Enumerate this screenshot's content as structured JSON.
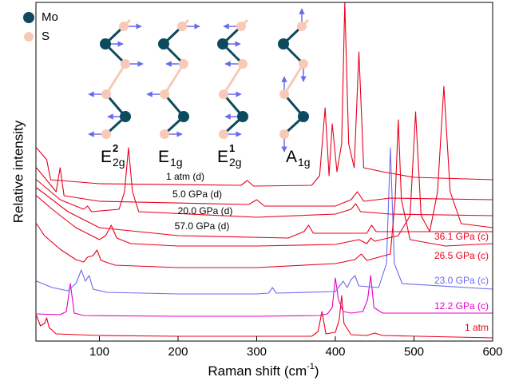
{
  "chart_data": {
    "type": "line",
    "x_label": "Raman shift (cm",
    "x_label_sup": "-1",
    "x_label_end": ")",
    "y_label": "Relative intensity",
    "xlim": [
      20,
      600
    ],
    "xticks": [
      100,
      200,
      300,
      400,
      500,
      600
    ],
    "ylim": [
      0,
      424
    ],
    "inset": {
      "legend": [
        {
          "name": "Mo",
          "color": "#0d4a5e"
        },
        {
          "name": "S",
          "color": "#f7c9b6"
        }
      ],
      "modes": [
        {
          "label": "E",
          "sup": "2",
          "sub": "2g"
        },
        {
          "label": "E",
          "sub": "1g"
        },
        {
          "label": "E",
          "sup": "1",
          "sub": "2g"
        },
        {
          "label": "A",
          "sub": "1g"
        }
      ]
    },
    "series": [
      {
        "name": "1 atm",
        "color": "#e8001c",
        "x": [
          20,
          25,
          30,
          33,
          36,
          45,
          100,
          200,
          300,
          370,
          378,
          383,
          388,
          400,
          405,
          408,
          411,
          420,
          440,
          450,
          460,
          600
        ],
        "values": [
          32,
          19,
          22,
          29,
          17,
          9,
          7,
          6,
          6,
          6,
          12,
          37,
          9,
          11,
          27,
          57,
          22,
          8,
          7,
          10,
          7,
          4
        ]
      },
      {
        "name": "12.2 GPa (c)",
        "color": "#e600c8",
        "x": [
          20,
          50,
          58,
          63,
          68,
          80,
          200,
          300,
          380,
          390,
          396,
          400,
          404,
          410,
          420,
          435,
          441,
          445,
          449,
          460,
          600
        ],
        "values": [
          34,
          33,
          37,
          72,
          35,
          32,
          31,
          31,
          32,
          34,
          42,
          79,
          52,
          37,
          35,
          37,
          52,
          82,
          42,
          35,
          35
        ]
      },
      {
        "name": "23.0 GPa (c)",
        "color": "#6a6aee",
        "x": [
          20,
          40,
          60,
          70,
          77,
          82,
          87,
          92,
          110,
          200,
          300,
          315,
          320,
          325,
          400,
          410,
          415,
          420,
          425,
          430,
          455,
          465,
          470,
          475,
          485,
          600
        ],
        "values": [
          75,
          67,
          63,
          72,
          89,
          75,
          82,
          65,
          61,
          59,
          59,
          60,
          67,
          60,
          62,
          75,
          67,
          77,
          82,
          69,
          67,
          97,
          242,
          97,
          72,
          65
        ]
      },
      {
        "name": "26.5 GPa (c)",
        "color": "#e8001c",
        "x": [
          20,
          30,
          50,
          70,
          80,
          85,
          92,
          97,
          102,
          120,
          200,
          300,
          400,
          425,
          433,
          440,
          470,
          476,
          480,
          484,
          495,
          540,
          600
        ],
        "values": [
          147,
          132,
          115,
          102,
          99,
          105,
          107,
          114,
          101,
          95,
          92,
          92,
          97,
          102,
          109,
          101,
          109,
          177,
          277,
          177,
          127,
          119,
          122
        ]
      },
      {
        "name": "36.1 GPa (c)",
        "color": "#e8001c",
        "x": [
          20,
          40,
          70,
          100,
          108,
          115,
          122,
          140,
          200,
          300,
          400,
          430,
          440,
          445,
          450,
          480,
          495,
          502,
          509,
          520,
          530,
          538,
          546,
          560,
          600
        ],
        "values": [
          182,
          165,
          142,
          127,
          132,
          145,
          129,
          122,
          119,
          119,
          121,
          127,
          122,
          129,
          125,
          132,
          157,
          287,
          157,
          137,
          187,
          319,
          187,
          147,
          142
        ]
      },
      {
        "name": "57.0 GPa (d)",
        "color": "#e8001c",
        "x": [
          20,
          60,
          100,
          200,
          340,
          360,
          366,
          372,
          440,
          446,
          452,
          600
        ],
        "values": [
          192,
          162,
          142,
          132,
          129,
          137,
          145,
          135,
          135,
          145,
          137,
          137
        ]
      },
      {
        "name": "20.0 GPa (d)",
        "color": "#e8001c",
        "x": [
          20,
          50,
          80,
          85,
          90,
          125,
          132,
          137,
          142,
          150,
          300,
          400,
          420,
          426,
          432,
          470,
          600
        ],
        "values": [
          202,
          177,
          165,
          169,
          162,
          165,
          187,
          242,
          187,
          162,
          155,
          159,
          165,
          172,
          162,
          159,
          157
        ]
      },
      {
        "name": "5.0 GPa (d)",
        "color": "#e8001c",
        "x": [
          20,
          45,
          50,
          55,
          100,
          290,
          300,
          310,
          400,
          420,
          428,
          436,
          470,
          600
        ],
        "values": [
          217,
          187,
          217,
          182,
          175,
          171,
          177,
          169,
          169,
          177,
          187,
          175,
          179,
          177
        ]
      },
      {
        "name": "1 atm (d)",
        "color": "#e8001c",
        "x": [
          20,
          33,
          38,
          100,
          280,
          288,
          296,
          370,
          380,
          387,
          392,
          396,
          402,
          408,
          412,
          417,
          424,
          430,
          436,
          460,
          500,
          600
        ],
        "values": [
          242,
          227,
          202,
          197,
          195,
          201,
          194,
          195,
          207,
          292,
          207,
          272,
          212,
          247,
          424,
          247,
          217,
          362,
          217,
          212,
          205,
          202
        ]
      }
    ]
  }
}
